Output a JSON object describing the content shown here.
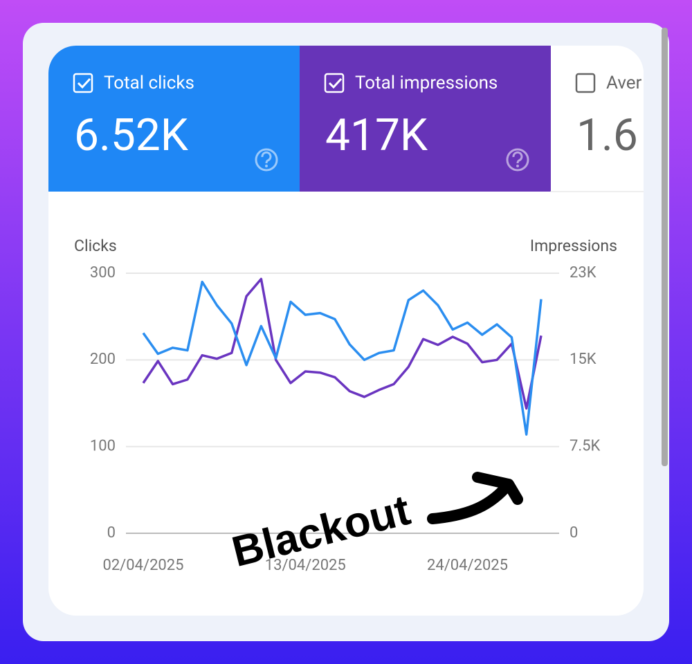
{
  "tiles": [
    {
      "label": "Total clicks",
      "value": "6.52K",
      "checked": true,
      "color": "#1f87f5"
    },
    {
      "label": "Total impressions",
      "value": "417K",
      "checked": true,
      "color": "#6734b8"
    },
    {
      "label": "Aver",
      "value": "1.6",
      "checked": false,
      "color": "#ffffff"
    }
  ],
  "chart_data": {
    "type": "line",
    "y_label": "Clicks",
    "y2_label": "Impressions",
    "categories": [
      "02/04/2025",
      null,
      null,
      null,
      null,
      null,
      null,
      null,
      null,
      null,
      null,
      "13/04/2025",
      null,
      null,
      null,
      null,
      null,
      null,
      null,
      null,
      null,
      null,
      "24/04/2025",
      null,
      null,
      null,
      null,
      null
    ],
    "series": [
      {
        "name": "Clicks",
        "color": "#2b8ef0",
        "values": [
          231,
          207,
          214,
          211,
          290,
          263,
          242,
          194,
          239,
          202,
          267,
          252,
          254,
          247,
          218,
          200,
          208,
          211,
          269,
          280,
          263,
          235,
          243,
          229,
          241,
          226,
          114,
          270
        ]
      },
      {
        "name": "Impressions",
        "color": "#6a35c0",
        "axis": "y2",
        "values": [
          13000,
          14900,
          12900,
          13300,
          15400,
          15100,
          15600,
          20500,
          22000,
          15000,
          13000,
          14000,
          13900,
          13500,
          12300,
          11800,
          12400,
          12900,
          14400,
          16800,
          16300,
          17000,
          16400,
          14800,
          15000,
          16400,
          10800,
          17100
        ]
      }
    ],
    "ylim": [
      0,
      300
    ],
    "yticks": [
      0,
      100,
      200,
      300
    ],
    "y2lim": [
      0,
      22500
    ],
    "y2ticks": [
      0,
      {
        "value": 7500,
        "label": "7.5K"
      },
      {
        "value": 15000,
        "label": "15K"
      },
      {
        "value": 22500,
        "label": "23K"
      }
    ],
    "grid": true,
    "annotations": [
      "Blackout"
    ]
  }
}
